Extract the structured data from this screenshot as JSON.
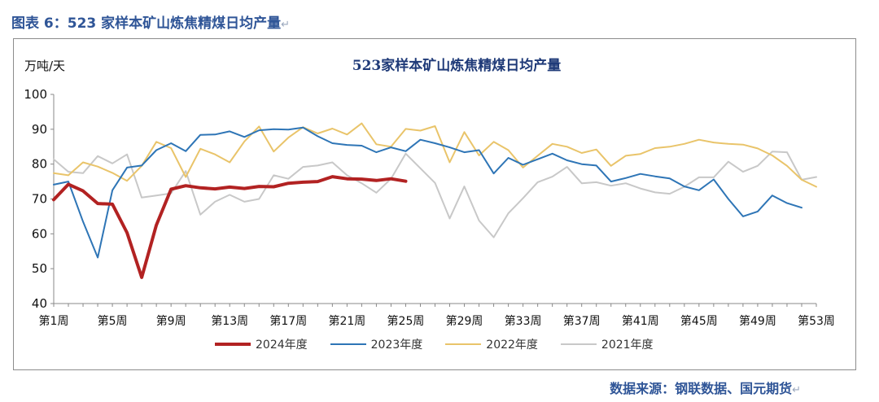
{
  "caption": "图表 6：523 家样本矿山炼焦精煤日均产量",
  "caption_return_mark": "↵",
  "source": "数据来源：钢联数据、国元期货",
  "source_return_mark": "↵",
  "chart_data": {
    "type": "line",
    "title": "523家样本矿山炼焦精煤日均产量",
    "ylabel": "万吨/天",
    "xlabel": "",
    "ylim": [
      40,
      100
    ],
    "yticks": [
      40,
      50,
      60,
      70,
      80,
      90,
      100
    ],
    "x_count": 53,
    "x_tick_labels": [
      "第1周",
      "第5周",
      "第9周",
      "第13周",
      "第17周",
      "第21周",
      "第25周",
      "第29周",
      "第33周",
      "第37周",
      "第41周",
      "第45周",
      "第49周",
      "第53周"
    ],
    "x_tick_weeks": [
      1,
      5,
      9,
      13,
      17,
      21,
      25,
      29,
      33,
      37,
      41,
      45,
      49,
      53
    ],
    "legend_position": "bottom",
    "series": [
      {
        "name": "2024年度",
        "color": "#b22222",
        "width": 4,
        "values": [
          69.8,
          74.2,
          72.3,
          68.7,
          68.5,
          60.3,
          47.5,
          62.5,
          72.8,
          73.8,
          73.2,
          72.9,
          73.4,
          73.0,
          73.6,
          73.5,
          74.5,
          74.8,
          75.0,
          76.4,
          75.8,
          75.7,
          75.3,
          75.8,
          75.1
        ]
      },
      {
        "name": "2023年度",
        "color": "#2e75b6",
        "width": 2,
        "values": [
          74.1,
          75.0,
          63.5,
          53.2,
          72.5,
          79.0,
          79.6,
          84.0,
          86.0,
          83.7,
          88.4,
          88.5,
          89.4,
          87.8,
          89.7,
          90.0,
          89.9,
          90.5,
          88.0,
          86.0,
          85.5,
          85.3,
          83.4,
          84.8,
          83.7,
          87.0,
          86.0,
          84.8,
          83.4,
          84.0,
          77.3,
          81.8,
          79.8,
          81.4,
          83.0,
          81.1,
          80.0,
          79.6,
          75.0,
          76.0,
          77.2,
          76.5,
          75.9,
          73.6,
          72.5,
          75.6,
          70.0,
          65.0,
          66.4,
          71.0,
          68.8,
          67.5,
          null
        ]
      },
      {
        "name": "2022年度",
        "color": "#e9c46a",
        "width": 2,
        "values": [
          77.4,
          76.8,
          80.5,
          79.3,
          77.5,
          75.2,
          79.5,
          86.4,
          84.6,
          76.3,
          84.4,
          82.8,
          80.5,
          86.5,
          90.8,
          83.6,
          87.6,
          90.6,
          88.8,
          90.2,
          88.5,
          91.7,
          85.7,
          85.0,
          90.1,
          89.6,
          90.9,
          80.5,
          89.2,
          82.5,
          86.4,
          84.0,
          79.0,
          82.4,
          85.8,
          85.0,
          83.2,
          84.2,
          79.5,
          82.4,
          82.9,
          84.6,
          85.0,
          85.8,
          87.0,
          86.2,
          85.8,
          85.6,
          84.5,
          82.5,
          79.5,
          75.5,
          73.5
        ]
      },
      {
        "name": "2021年度",
        "color": "#c8c8c8",
        "width": 2,
        "values": [
          81.4,
          77.8,
          77.4,
          82.3,
          80.2,
          82.8,
          70.4,
          71.0,
          71.6,
          78.0,
          65.5,
          69.2,
          71.2,
          69.2,
          70.0,
          76.8,
          75.8,
          79.2,
          79.6,
          80.5,
          76.8,
          74.5,
          71.8,
          75.8,
          83.0,
          78.8,
          74.6,
          64.4,
          73.6,
          63.8,
          59.0,
          65.9,
          70.2,
          74.8,
          76.4,
          79.2,
          74.5,
          74.8,
          73.8,
          74.5,
          73.0,
          71.9,
          71.5,
          73.5,
          76.2,
          76.2,
          80.7,
          77.8,
          79.5,
          83.6,
          83.4,
          75.5,
          76.3
        ]
      }
    ]
  }
}
